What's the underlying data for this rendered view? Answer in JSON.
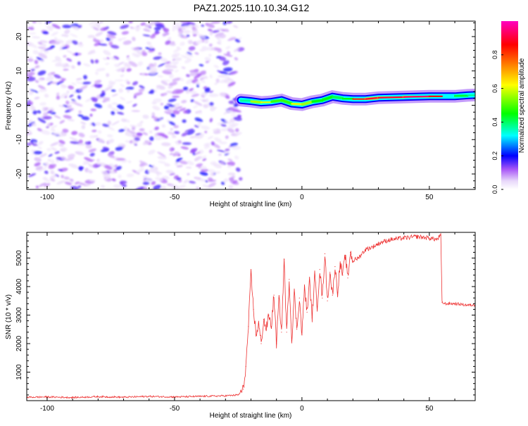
{
  "title": "PAZ1.2025.110.10.34.G12",
  "chart_data": [
    {
      "type": "heatmap",
      "title": "",
      "xlabel": "Height of straight line (km)",
      "ylabel": "Frequency (Hz)",
      "xlim": [
        -108,
        68
      ],
      "ylim": [
        -24.5,
        24.5
      ],
      "x_ticks": [
        -100,
        -50,
        0,
        50
      ],
      "y_ticks": [
        -20,
        -10,
        0,
        10,
        20
      ],
      "colorbar": {
        "label": "Normalized spectral amplitude",
        "range": [
          0,
          1
        ],
        "ticks": [
          "0.0",
          "0.2",
          "0.4",
          "0.6",
          "0.8"
        ],
        "colors": [
          "#ffffff",
          "#d6b8f5",
          "#8a2be2",
          "#0000ff",
          "#00ffff",
          "#00ff00",
          "#ffff00",
          "#ff8000",
          "#ff0000",
          "#ff00c0"
        ]
      },
      "description_regions": [
        {
          "x_range": [
            -108,
            -24
          ],
          "f_range": [
            -24.5,
            24.5
          ],
          "amplitude_range": [
            0.02,
            0.15
          ]
        },
        {
          "x_range": [
            -24,
            68
          ],
          "amplitude_range": [
            0.3,
            1.0
          ]
        }
      ],
      "signal_ridge": {
        "x": [
          -24,
          -20,
          -16,
          -12,
          -8,
          -4,
          0,
          4,
          8,
          12,
          16,
          20,
          25,
          30,
          40,
          50,
          55,
          60,
          65,
          68
        ],
        "frequency": [
          1.5,
          1.2,
          0.8,
          1.0,
          1.5,
          0.5,
          0.2,
          1.0,
          1.5,
          2.5,
          2.0,
          1.8,
          1.8,
          2.2,
          2.4,
          2.6,
          2.6,
          2.6,
          2.9,
          3.0
        ],
        "amplitude": [
          0.4,
          0.6,
          0.9,
          0.7,
          0.6,
          0.7,
          0.9,
          0.6,
          0.6,
          0.6,
          0.5,
          0.7,
          0.95,
          0.85,
          0.95,
          0.92,
          0.8,
          0.6,
          0.55,
          0.5
        ]
      }
    },
    {
      "type": "line",
      "title": "",
      "xlabel": "Height of straight line (km)",
      "ylabel": "SNR (10 * v/v)",
      "xlim": [
        -108,
        68
      ],
      "ylim": [
        0,
        5900
      ],
      "x_ticks": [
        -100,
        -50,
        0,
        50
      ],
      "y_ticks": [
        1000,
        2000,
        3000,
        4000,
        5000
      ],
      "color": "#ee3333",
      "series": [
        {
          "x": [
            -108,
            -100,
            -90,
            -80,
            -70,
            -60,
            -50,
            -40,
            -30,
            -25,
            -23,
            -22,
            -21,
            -20,
            -19,
            -18,
            -17,
            -16,
            -15,
            -14,
            -13,
            -12,
            -11,
            -10,
            -9,
            -8,
            -7,
            -6,
            -5,
            -4,
            -3,
            -2,
            -1,
            0,
            1,
            2,
            3,
            4,
            5,
            6,
            7,
            8,
            9,
            10,
            11,
            12,
            13,
            14,
            15,
            16,
            17,
            18,
            19,
            20,
            22,
            25,
            28,
            31,
            35,
            40,
            45,
            50,
            53,
            54.5,
            55,
            56,
            60,
            65,
            68
          ],
          "y": [
            120,
            130,
            110,
            140,
            120,
            150,
            130,
            150,
            170,
            200,
            400,
            1200,
            2600,
            4450,
            3200,
            2300,
            2700,
            2000,
            2850,
            2500,
            3000,
            2600,
            3700,
            2000,
            3600,
            2400,
            4950,
            2400,
            4250,
            2100,
            3800,
            2500,
            3600,
            2300,
            4000,
            3100,
            4200,
            2900,
            4400,
            3300,
            4600,
            3600,
            5150,
            3500,
            4500,
            3700,
            4700,
            3800,
            4800,
            4400,
            5100,
            4300,
            5200,
            4900,
            5000,
            5300,
            5400,
            5550,
            5650,
            5700,
            5750,
            5700,
            5650,
            5800,
            3450,
            3400,
            3400,
            3350,
            3350
          ]
        }
      ]
    }
  ]
}
